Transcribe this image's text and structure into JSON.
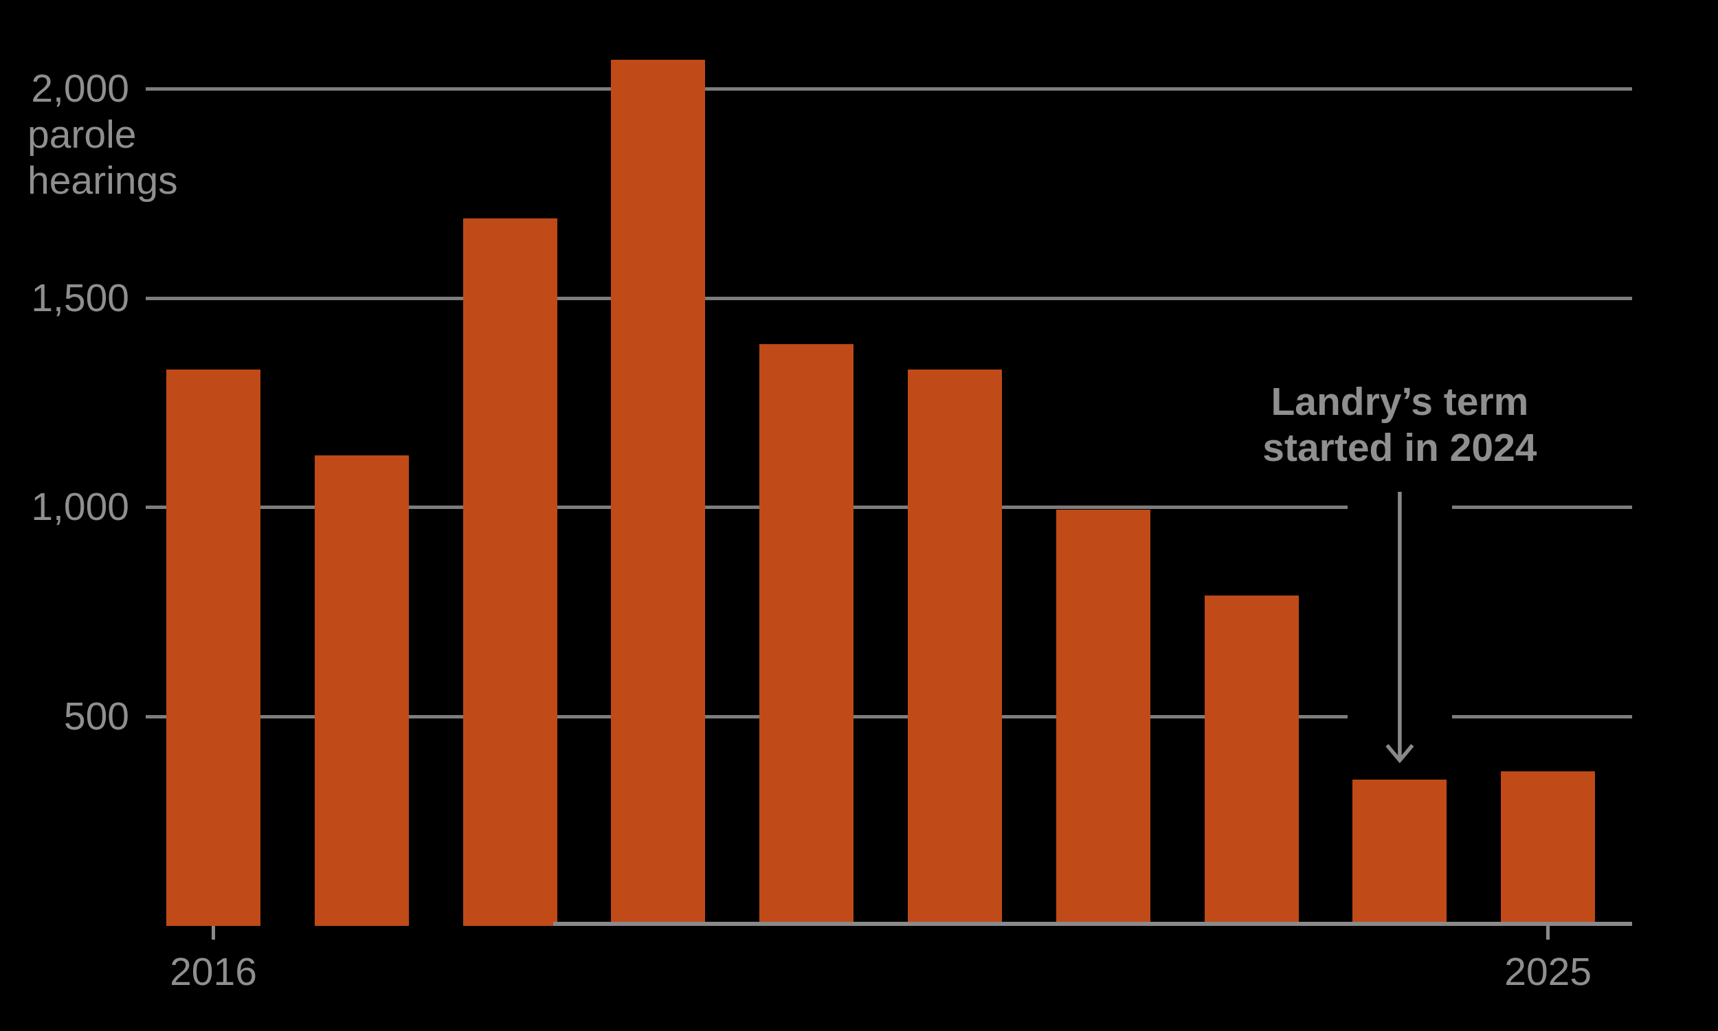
{
  "colors": {
    "background": "#000000",
    "bar": "#c04a18",
    "grid": "#7d7d7d",
    "axis": "#8a8a8a",
    "label_text": "#8f8f8f",
    "annotation_text": "#8f8f8f"
  },
  "chart_data": {
    "type": "bar",
    "categories": [
      "2016",
      "2017",
      "2018",
      "2019",
      "2020",
      "2021",
      "2022",
      "2023",
      "2024",
      "2025"
    ],
    "values": [
      1330,
      1125,
      1690,
      2070,
      1390,
      1330,
      995,
      790,
      350,
      370
    ],
    "title": "",
    "xlabel": "",
    "ylabel": "parole hearings",
    "ylim": [
      0,
      2100
    ],
    "grid": "horizontal",
    "y_ticks": [
      {
        "value": 2000,
        "label": "2,000"
      },
      {
        "value": 1500,
        "label": "1,500"
      },
      {
        "value": 1000,
        "label": "1,000"
      },
      {
        "value": 500,
        "label": "500"
      }
    ],
    "y_unit_lines": [
      "parole",
      "hearings"
    ],
    "x_tick_labels_shown": [
      "2016",
      "2025"
    ],
    "annotation": {
      "lines": [
        "Landry’s term",
        "started in 2024"
      ],
      "points_to_year": "2024"
    }
  }
}
